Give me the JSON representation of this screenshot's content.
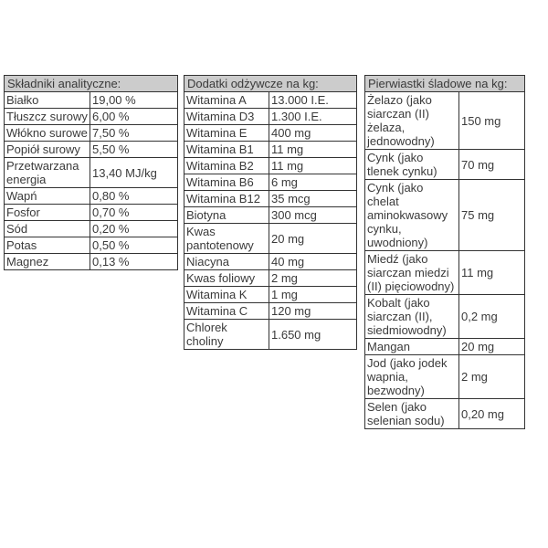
{
  "colors": {
    "header_bg": "#cccccc",
    "border": "#333333",
    "text": "#3a3a3a"
  },
  "analytical": {
    "title": "Składniki analityczne:",
    "rows": [
      {
        "name": "Białko",
        "value": "19,00 %"
      },
      {
        "name": "Tłuszcz surowy",
        "value": "6,00 %"
      },
      {
        "name": "Włókno surowe",
        "value": "7,50 %"
      },
      {
        "name": "Popiół surowy",
        "value": "5,50 %"
      },
      {
        "name": "Przetwarzana energia",
        "value": "13,40 MJ/kg"
      },
      {
        "name": "Wapń",
        "value": "0,80 %"
      },
      {
        "name": "Fosfor",
        "value": "0,70 %"
      },
      {
        "name": "Sód",
        "value": "0,20 %"
      },
      {
        "name": "Potas",
        "value": "0,50 %"
      },
      {
        "name": "Magnez",
        "value": "0,13 %"
      }
    ]
  },
  "additives": {
    "title": "Dodatki odżywcze na kg:",
    "rows": [
      {
        "name": "Witamina A",
        "value": "13.000 I.E."
      },
      {
        "name": "Witamina D3",
        "value": "1.300 I.E."
      },
      {
        "name": "Witamina E",
        "value": "400 mg"
      },
      {
        "name": "Witamina B1",
        "value": "11 mg"
      },
      {
        "name": "Witamina B2",
        "value": "11 mg"
      },
      {
        "name": "Witamina B6",
        "value": "6 mg"
      },
      {
        "name": "Witamina B12",
        "value": "35 mcg"
      },
      {
        "name": "Biotyna",
        "value": "300 mcg"
      },
      {
        "name": "Kwas pantotenowy",
        "value": "20 mg"
      },
      {
        "name": "Niacyna",
        "value": "40 mg"
      },
      {
        "name": "Kwas foliowy",
        "value": "2 mg"
      },
      {
        "name": "Witamina K",
        "value": "1 mg"
      },
      {
        "name": "Witamina C",
        "value": "120 mg"
      },
      {
        "name": "Chlorek choliny",
        "value": "1.650 mg"
      }
    ]
  },
  "trace": {
    "title": "Pierwiastki śladowe na kg:",
    "rows": [
      {
        "name": "Żelazo (jako siarczan (II) żelaza, jednowodny)",
        "value": "150 mg"
      },
      {
        "name": "Cynk (jako tlenek cynku)",
        "value": "70 mg"
      },
      {
        "name": "Cynk (jako chelat aminokwasowy cynku, uwodniony)",
        "value": "75 mg"
      },
      {
        "name": "Miedź (jako siarczan miedzi (II) pięciowodny)",
        "value": "11 mg"
      },
      {
        "name": "Kobalt (jako siarczan (II), siedmiowodny)",
        "value": "0,2 mg"
      },
      {
        "name": "Mangan",
        "value": "20 mg"
      },
      {
        "name": "Jod (jako jodek wapnia, bezwodny)",
        "value": "2 mg"
      },
      {
        "name": "Selen (jako selenian sodu)",
        "value": "0,20 mg"
      }
    ]
  }
}
